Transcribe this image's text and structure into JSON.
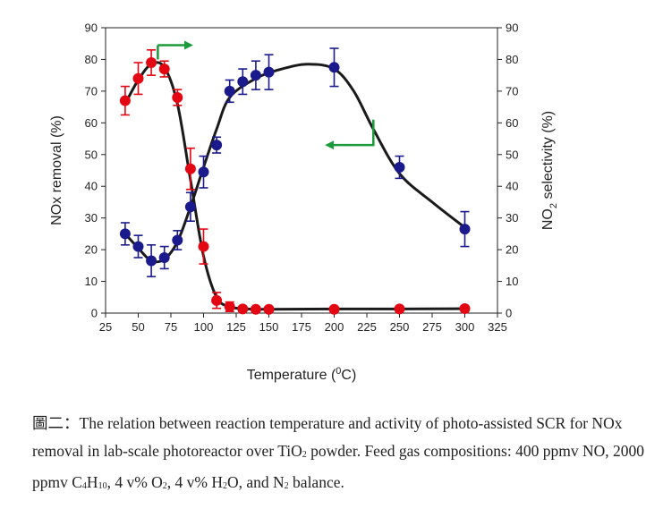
{
  "chart_data": {
    "type": "scatter",
    "xlabel": "Temperature (°C)",
    "xlabel_parts": {
      "pre": "Temperature (",
      "sup": "0",
      "post": "C)"
    },
    "ylabel_left": "NOx removal (%)",
    "ylabel_right_parts": {
      "pre": "NO",
      "sub": "2",
      "post": " selectivity (%)"
    },
    "xlim": [
      25,
      325
    ],
    "x_ticks": [
      25,
      50,
      75,
      100,
      125,
      150,
      175,
      200,
      225,
      250,
      275,
      300,
      325
    ],
    "ylim": [
      0,
      90
    ],
    "y_ticks": [
      0,
      10,
      20,
      30,
      40,
      50,
      60,
      70,
      80,
      90
    ],
    "grid": false,
    "colors": {
      "nox_removal": "#e30613",
      "no2_selectivity": "#1a1a8c",
      "arrow": "#1a9a3a",
      "curve": "#1a1a1a"
    },
    "series": [
      {
        "key": "nox_removal",
        "axis": "left",
        "x": [
          40,
          50,
          60,
          70,
          80,
          90,
          100,
          110,
          120,
          130,
          140,
          150,
          200,
          250,
          300
        ],
        "y": [
          67,
          74,
          79,
          77,
          68,
          45.5,
          21,
          4,
          2,
          1.3,
          1.2,
          1.2,
          1.2,
          1.3,
          1.4
        ],
        "err": [
          4.5,
          5,
          4,
          2.5,
          2.5,
          6.5,
          5.5,
          2.5,
          1.5,
          0.5,
          0.3,
          0.3,
          0.3,
          0.3,
          0.3
        ]
      },
      {
        "key": "no2_selectivity",
        "axis": "right",
        "x": [
          40,
          50,
          60,
          70,
          80,
          90,
          100,
          110,
          120,
          130,
          140,
          150,
          200,
          250,
          300
        ],
        "y": [
          25,
          21,
          16.5,
          17.5,
          23,
          33.5,
          44.5,
          53,
          70,
          73,
          75,
          76,
          77.5,
          46,
          26.5
        ],
        "err": [
          3.5,
          3.5,
          5,
          3.5,
          3,
          4.5,
          5,
          2.5,
          3.5,
          4,
          4.5,
          5.5,
          6,
          3.5,
          5.5
        ]
      }
    ],
    "fit_curves": [
      {
        "key": "nox_removal",
        "x": [
          40,
          50,
          60,
          70,
          80,
          90,
          100,
          110,
          120,
          130,
          140,
          150,
          200,
          250,
          300
        ],
        "y": [
          66,
          73.5,
          78.5,
          77.5,
          66,
          42,
          18,
          5,
          2,
          1.4,
          1.2,
          1.2,
          1.3,
          1.3,
          1.4
        ]
      },
      {
        "key": "no2_selectivity",
        "x": [
          40,
          50,
          60,
          70,
          80,
          90,
          100,
          110,
          120,
          140,
          160,
          180,
          200,
          215,
          230,
          250,
          275,
          300
        ],
        "y": [
          25,
          20.5,
          16.5,
          17,
          22.5,
          33.5,
          46,
          58,
          68,
          74,
          77,
          78.5,
          77,
          70,
          58,
          44,
          35,
          27
        ]
      }
    ],
    "annotations": [
      {
        "type": "arrow",
        "name": "arrow-to-right-axis",
        "from": [
          65,
          84.5
        ],
        "to": [
          90,
          84.5
        ],
        "points_to": "right axis"
      },
      {
        "type": "arrow",
        "name": "arrow-to-left-axis",
        "from": [
          230,
          61
        ],
        "to": [
          230,
          53
        ],
        "then_to": [
          195,
          53
        ],
        "points_to": "left axis"
      }
    ]
  },
  "caption": {
    "prefix": "圖二：",
    "parts": [
      {
        "t": "The relation between reaction temperature and activity of photo-assisted SCR for NOx removal in lab-scale photoreactor over TiO"
      },
      {
        "t": "2",
        "sub": true
      },
      {
        "t": " powder. Feed gas compositions: 400 ppmv NO, 2000 ppmv C"
      },
      {
        "t": "4",
        "sub": true
      },
      {
        "t": "H"
      },
      {
        "t": "10",
        "sub": true
      },
      {
        "t": ", 4 v% O"
      },
      {
        "t": "2",
        "sub": true
      },
      {
        "t": ", 4 v% H"
      },
      {
        "t": "2",
        "sub": true
      },
      {
        "t": "O, and N"
      },
      {
        "t": "2",
        "sub": true
      },
      {
        "t": " balance."
      }
    ]
  }
}
